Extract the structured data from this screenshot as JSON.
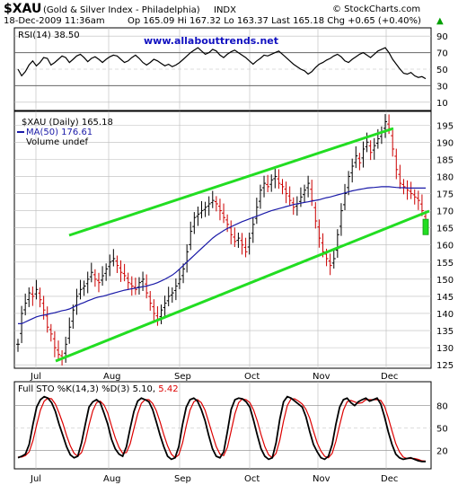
{
  "header": {
    "symbol": "$XAU",
    "name": "(Gold & Silver Index - Philadelphia)",
    "exchange": "INDX",
    "datetime": "18-Dec-2009 11:36am",
    "quote": "Op 165.09  Hi 167.32  Lo 163.37  Last 165.18  Chg +0.65 (+0.40%)",
    "chg_arrow": "▲",
    "brand": "© StockCharts.com",
    "website": "www.allabouttrends.net"
  },
  "colors": {
    "price": "#000000",
    "price_down": "#cc0000",
    "ma": "#1a1aa8",
    "channel": "#22dd22",
    "stoch_k": "#000000",
    "stoch_d": "#dd0000",
    "grid": "#bbbbbb"
  },
  "chart_data": [
    {
      "type": "line",
      "panel": "rsi",
      "title": "RSI(14) 38.50",
      "y_ticks": [
        10,
        30,
        50,
        70,
        90
      ],
      "ylim": [
        0,
        100
      ],
      "series": [
        {
          "name": "RSI(14)",
          "values": [
            50,
            42,
            47,
            55,
            60,
            54,
            58,
            64,
            63,
            55,
            58,
            62,
            66,
            64,
            58,
            62,
            66,
            68,
            64,
            59,
            63,
            65,
            62,
            58,
            62,
            65,
            67,
            66,
            62,
            58,
            60,
            64,
            67,
            63,
            58,
            55,
            58,
            62,
            60,
            57,
            54,
            56,
            53,
            55,
            58,
            62,
            66,
            70,
            73,
            76,
            72,
            68,
            70,
            74,
            72,
            67,
            64,
            68,
            71,
            73,
            70,
            67,
            64,
            60,
            56,
            60,
            63,
            67,
            66,
            68,
            70,
            72,
            68,
            64,
            60,
            56,
            53,
            50,
            48,
            44,
            47,
            52,
            56,
            58,
            61,
            63,
            66,
            68,
            65,
            60,
            58,
            62,
            65,
            68,
            70,
            67,
            64,
            68,
            72,
            74,
            76,
            70,
            62,
            56,
            50,
            45,
            44,
            46,
            42,
            40,
            41,
            38.5
          ]
        }
      ]
    },
    {
      "type": "line",
      "panel": "price",
      "title": "$XAU (Daily) 165.18",
      "x_labels": [
        "Jul",
        "Aug",
        "Sep",
        "Oct",
        "Nov",
        "Dec"
      ],
      "ylim": [
        124,
        199
      ],
      "y_ticks": [
        125,
        130,
        135,
        140,
        145,
        150,
        155,
        160,
        165,
        170,
        175,
        180,
        185,
        190,
        195
      ],
      "series": [
        {
          "name": "$XAU (Daily) 165.18",
          "values": [
            131,
            140,
            143,
            146,
            145,
            147,
            144,
            141,
            136,
            134,
            130,
            128,
            127,
            131,
            136,
            141,
            145,
            147,
            148,
            150,
            152,
            150,
            149,
            151,
            153,
            155,
            156,
            154,
            152,
            151,
            149,
            148,
            147,
            149,
            150,
            146,
            143,
            140,
            138,
            141,
            143,
            145,
            146,
            148,
            150,
            153,
            158,
            164,
            168,
            169,
            170,
            171,
            172,
            173,
            172,
            170,
            168,
            166,
            163,
            161,
            162,
            160,
            158,
            162,
            166,
            171,
            176,
            178,
            177,
            179,
            180,
            178,
            177,
            175,
            173,
            171,
            172,
            174,
            176,
            178,
            173,
            167,
            162,
            158,
            156,
            154,
            156,
            163,
            170,
            175,
            180,
            183,
            186,
            184,
            188,
            190,
            187,
            189,
            191,
            193,
            196,
            194,
            188,
            182,
            178,
            177,
            176,
            175,
            174,
            173,
            170,
            165.18
          ]
        },
        {
          "name": "MA(50) 176.61",
          "values": [
            137,
            137,
            137.5,
            138,
            138.5,
            139,
            139.3,
            139.5,
            139.7,
            140,
            140.2,
            140.5,
            140.8,
            141,
            141.3,
            141.8,
            142.3,
            142.8,
            143.2,
            143.7,
            144.1,
            144.5,
            144.8,
            145,
            145.3,
            145.6,
            145.9,
            146.2,
            146.5,
            146.8,
            147,
            147.2,
            147.4,
            147.6,
            147.8,
            148,
            148.3,
            148.6,
            149,
            149.5,
            150,
            150.6,
            151.2,
            152,
            153,
            154,
            155,
            156,
            157,
            158,
            159,
            160,
            161,
            162,
            162.8,
            163.5,
            164.2,
            164.8,
            165.3,
            165.8,
            166.3,
            166.8,
            167.2,
            167.6,
            168,
            168.4,
            168.8,
            169.2,
            169.6,
            170,
            170.3,
            170.6,
            170.9,
            171.2,
            171.5,
            171.8,
            172,
            172.2,
            172.4,
            172.6,
            172.8,
            173,
            173.2,
            173.5,
            173.8,
            174,
            174.3,
            174.6,
            174.9,
            175.2,
            175.5,
            175.8,
            176,
            176.2,
            176.4,
            176.6,
            176.7,
            176.8,
            176.9,
            177,
            177,
            177,
            176.9,
            176.8,
            176.7,
            176.7,
            176.6,
            176.6,
            176.6,
            176.61,
            176.61,
            176.61
          ]
        }
      ],
      "legend": [
        "$XAU (Daily) 165.18",
        "MA(50) 176.61",
        "Volume undef"
      ]
    },
    {
      "type": "line",
      "panel": "stochastic",
      "title": "Full STO %K(14,3) %D(3) 5.10, 5.42",
      "label_prefix": "Full STO %K(14,3) %D(3)",
      "k_label": "5.10,",
      "d_label": "5.42",
      "ylim": [
        0,
        100
      ],
      "y_ticks": [
        20,
        50,
        80
      ],
      "x_labels": [
        "Jul",
        "Aug",
        "Sep",
        "Oct",
        "Nov",
        "Dec"
      ],
      "series": [
        {
          "name": "%K",
          "values": [
            10,
            12,
            15,
            28,
            55,
            78,
            88,
            92,
            90,
            84,
            72,
            55,
            40,
            25,
            14,
            10,
            12,
            30,
            55,
            78,
            85,
            88,
            84,
            70,
            55,
            35,
            22,
            15,
            12,
            25,
            50,
            72,
            86,
            90,
            88,
            85,
            75,
            58,
            40,
            25,
            12,
            8,
            10,
            25,
            55,
            78,
            88,
            90,
            86,
            75,
            60,
            40,
            22,
            12,
            10,
            18,
            45,
            75,
            88,
            90,
            89,
            85,
            78,
            60,
            40,
            22,
            12,
            8,
            10,
            30,
            62,
            85,
            92,
            90,
            86,
            82,
            78,
            65,
            45,
            28,
            18,
            10,
            8,
            12,
            28,
            55,
            78,
            88,
            90,
            84,
            80,
            85,
            88,
            90,
            86,
            88,
            90,
            82,
            65,
            45,
            28,
            15,
            10,
            8,
            9,
            10,
            8,
            6,
            5,
            5.1
          ]
        },
        {
          "name": "%D",
          "values": [
            11,
            11,
            13,
            18,
            33,
            54,
            74,
            86,
            90,
            89,
            82,
            70,
            56,
            40,
            26,
            16,
            12,
            17,
            32,
            54,
            73,
            84,
            86,
            81,
            70,
            53,
            37,
            24,
            16,
            17,
            29,
            49,
            69,
            83,
            88,
            88,
            83,
            73,
            58,
            41,
            26,
            15,
            10,
            14,
            30,
            53,
            74,
            85,
            88,
            84,
            74,
            58,
            41,
            25,
            15,
            13,
            24,
            46,
            69,
            84,
            89,
            88,
            84,
            74,
            59,
            41,
            25,
            14,
            10,
            16,
            34,
            59,
            80,
            89,
            89,
            86,
            82,
            75,
            63,
            46,
            30,
            19,
            12,
            10,
            16,
            32,
            54,
            74,
            85,
            87,
            85,
            83,
            84,
            88,
            88,
            88,
            88,
            87,
            79,
            64,
            46,
            29,
            18,
            11,
            9,
            9,
            9,
            8,
            6,
            5.42
          ]
        }
      ]
    }
  ]
}
